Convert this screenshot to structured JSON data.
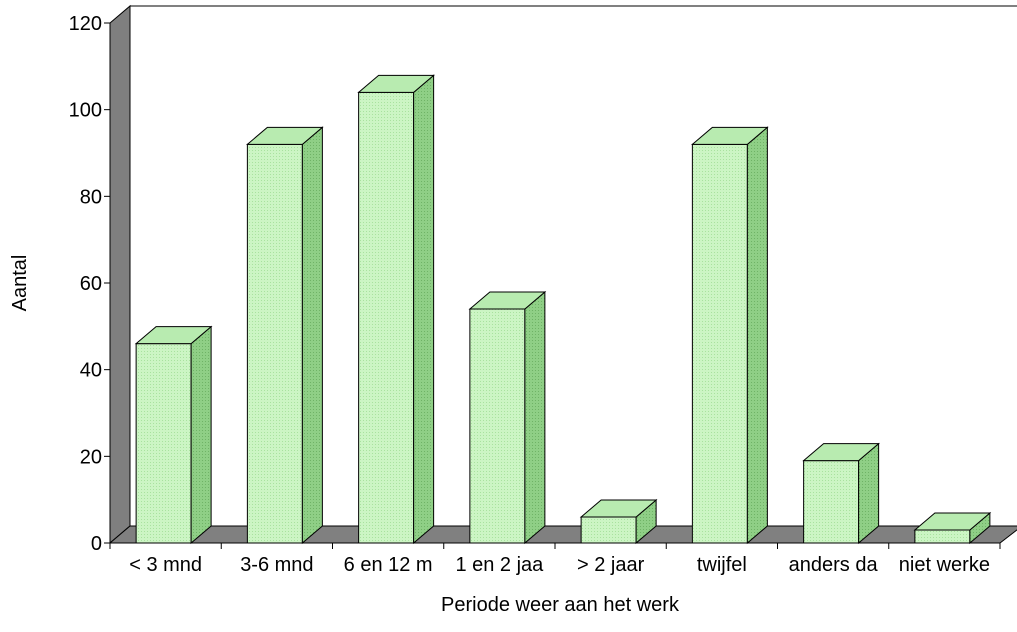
{
  "chart_data": {
    "type": "bar",
    "title": "",
    "xlabel": "Periode weer aan het werk",
    "ylabel": "Aantal",
    "categories": [
      "< 3 mnd",
      "3-6 mnd",
      "6 en 12 m",
      "1 en 2 jaa",
      "> 2 jaar",
      "twijfel",
      "anders da",
      "niet werke"
    ],
    "values": [
      46,
      92,
      104,
      54,
      6,
      92,
      19,
      3
    ],
    "ylim": [
      0,
      120
    ],
    "yticks": [
      "0",
      "20",
      "40",
      "60",
      "80",
      "100",
      "120"
    ],
    "grid": false,
    "legend": "none",
    "style": "3d-column",
    "colors": {
      "bar_front": "#ccf5c4",
      "bar_side": "#8fcf86",
      "bar_top": "#b8ebb0",
      "floor": "#808080",
      "back_wall": "#ffffff",
      "side_wall": "#7f7f7f",
      "stroke": "#000000"
    }
  }
}
